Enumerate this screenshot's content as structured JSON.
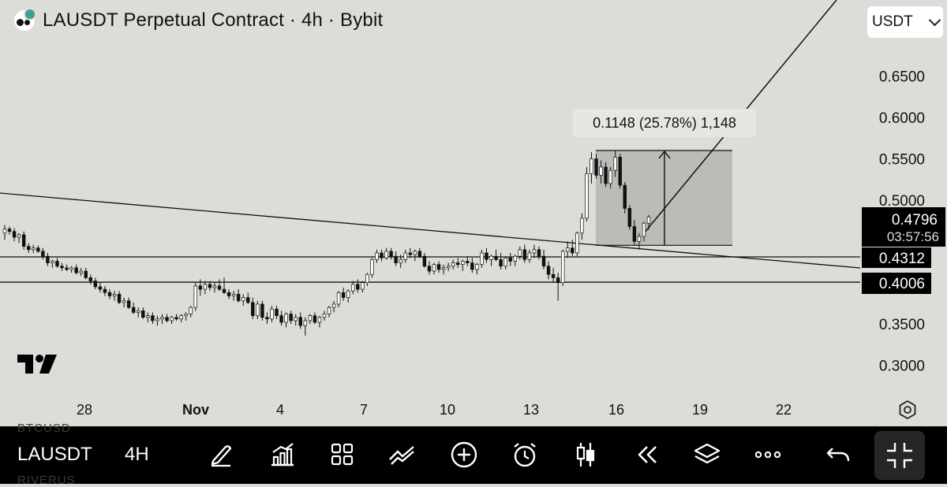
{
  "header": {
    "title": "LAUSDT Perpetual Contract · 4h · Bybit",
    "currency_label": "USDT"
  },
  "icons": {
    "logo": "exchange-logo-icon",
    "currency_dropdown": "chevron-down-icon",
    "tradingview": "tradingview-logo-icon",
    "settings": "hexagon-settings-icon"
  },
  "colors": {
    "background": "#dcdcd8",
    "candle_up_fill": "#ffffff",
    "candle_down_fill": "#111111",
    "measure_box": "#b5b5b2",
    "price_tag_bg": "#000000",
    "toolbar_bg": "#000000"
  },
  "chart_data": {
    "type": "candlestick",
    "symbol": "LAUSDT",
    "interval": "4h",
    "x_tick_labels": [
      "28",
      "Nov",
      "4",
      "7",
      "10",
      "13",
      "16",
      "19",
      "22"
    ],
    "y_tick_labels": [
      "0.6500",
      "0.6000",
      "0.5500",
      "0.5000",
      "0.3500",
      "0.3000"
    ],
    "ylim": [
      0.272,
      0.69
    ],
    "grid": false,
    "price_tags": {
      "last_price": "0.4796",
      "countdown": "03:57:56",
      "level_1": "0.4312",
      "level_2": "0.4006"
    },
    "horizontal_levels": [
      0.4312,
      0.4006
    ],
    "trendline": {
      "from": {
        "x": "25.9",
        "y": 0.51
      },
      "to": {
        "x": "21.9",
        "y": 0.414
      }
    },
    "projection_line": {
      "from": {
        "x": "17.3",
        "y": 0.473
      },
      "to": {
        "x": "20.5",
        "y": 0.69
      }
    },
    "measure": {
      "label": "0.1148 (25.78%) 1,148",
      "from_price": 0.4452,
      "to_price": 0.56,
      "from_x": "15.2",
      "to_x": "20.4"
    },
    "candles_ohlc": [
      [
        0.46,
        0.47,
        0.452,
        0.465
      ],
      [
        0.465,
        0.468,
        0.458,
        0.462
      ],
      [
        0.462,
        0.466,
        0.45,
        0.455
      ],
      [
        0.455,
        0.46,
        0.448,
        0.458
      ],
      [
        0.458,
        0.462,
        0.44,
        0.444
      ],
      [
        0.444,
        0.448,
        0.436,
        0.44
      ],
      [
        0.44,
        0.446,
        0.436,
        0.442
      ],
      [
        0.442,
        0.445,
        0.436,
        0.438
      ],
      [
        0.438,
        0.442,
        0.428,
        0.432
      ],
      [
        0.432,
        0.436,
        0.42,
        0.424
      ],
      [
        0.424,
        0.428,
        0.418,
        0.426
      ],
      [
        0.426,
        0.43,
        0.418,
        0.42
      ],
      [
        0.42,
        0.424,
        0.414,
        0.418
      ],
      [
        0.418,
        0.422,
        0.414,
        0.416
      ],
      [
        0.416,
        0.42,
        0.412,
        0.418
      ],
      [
        0.418,
        0.422,
        0.41,
        0.412
      ],
      [
        0.412,
        0.418,
        0.408,
        0.414
      ],
      [
        0.414,
        0.418,
        0.404,
        0.406
      ],
      [
        0.406,
        0.41,
        0.398,
        0.402
      ],
      [
        0.402,
        0.406,
        0.392,
        0.395
      ],
      [
        0.395,
        0.4,
        0.388,
        0.392
      ],
      [
        0.392,
        0.396,
        0.384,
        0.388
      ],
      [
        0.388,
        0.392,
        0.38,
        0.384
      ],
      [
        0.384,
        0.39,
        0.378,
        0.386
      ],
      [
        0.386,
        0.39,
        0.374,
        0.376
      ],
      [
        0.376,
        0.382,
        0.37,
        0.378
      ],
      [
        0.378,
        0.382,
        0.368,
        0.37
      ],
      [
        0.37,
        0.376,
        0.362,
        0.364
      ],
      [
        0.364,
        0.37,
        0.358,
        0.366
      ],
      [
        0.366,
        0.37,
        0.356,
        0.358
      ],
      [
        0.358,
        0.364,
        0.352,
        0.36
      ],
      [
        0.36,
        0.364,
        0.35,
        0.354
      ],
      [
        0.354,
        0.36,
        0.348,
        0.356
      ],
      [
        0.356,
        0.362,
        0.35,
        0.358
      ],
      [
        0.358,
        0.362,
        0.352,
        0.354
      ],
      [
        0.354,
        0.36,
        0.35,
        0.358
      ],
      [
        0.358,
        0.362,
        0.354,
        0.356
      ],
      [
        0.356,
        0.362,
        0.352,
        0.36
      ],
      [
        0.36,
        0.364,
        0.354,
        0.362
      ],
      [
        0.362,
        0.372,
        0.358,
        0.37
      ],
      [
        0.37,
        0.4,
        0.366,
        0.396
      ],
      [
        0.396,
        0.404,
        0.384,
        0.392
      ],
      [
        0.392,
        0.402,
        0.386,
        0.398
      ],
      [
        0.398,
        0.402,
        0.39,
        0.394
      ],
      [
        0.394,
        0.4,
        0.388,
        0.396
      ],
      [
        0.396,
        0.404,
        0.39,
        0.392
      ],
      [
        0.392,
        0.406,
        0.386,
        0.388
      ],
      [
        0.388,
        0.392,
        0.38,
        0.384
      ],
      [
        0.384,
        0.39,
        0.378,
        0.386
      ],
      [
        0.386,
        0.392,
        0.376,
        0.378
      ],
      [
        0.378,
        0.386,
        0.372,
        0.382
      ],
      [
        0.382,
        0.388,
        0.374,
        0.376
      ],
      [
        0.376,
        0.382,
        0.356,
        0.36
      ],
      [
        0.36,
        0.378,
        0.356,
        0.374
      ],
      [
        0.374,
        0.378,
        0.354,
        0.358
      ],
      [
        0.358,
        0.364,
        0.35,
        0.356
      ],
      [
        0.356,
        0.372,
        0.352,
        0.368
      ],
      [
        0.368,
        0.372,
        0.356,
        0.36
      ],
      [
        0.36,
        0.366,
        0.348,
        0.352
      ],
      [
        0.352,
        0.364,
        0.346,
        0.362
      ],
      [
        0.362,
        0.366,
        0.35,
        0.354
      ],
      [
        0.354,
        0.362,
        0.348,
        0.358
      ],
      [
        0.358,
        0.364,
        0.344,
        0.348
      ],
      [
        0.348,
        0.358,
        0.336,
        0.354
      ],
      [
        0.354,
        0.362,
        0.35,
        0.36
      ],
      [
        0.36,
        0.364,
        0.35,
        0.352
      ],
      [
        0.352,
        0.36,
        0.346,
        0.358
      ],
      [
        0.358,
        0.366,
        0.354,
        0.362
      ],
      [
        0.362,
        0.372,
        0.358,
        0.37
      ],
      [
        0.37,
        0.378,
        0.364,
        0.374
      ],
      [
        0.374,
        0.39,
        0.37,
        0.388
      ],
      [
        0.388,
        0.394,
        0.378,
        0.382
      ],
      [
        0.382,
        0.392,
        0.376,
        0.39
      ],
      [
        0.39,
        0.402,
        0.386,
        0.398
      ],
      [
        0.398,
        0.404,
        0.388,
        0.392
      ],
      [
        0.392,
        0.402,
        0.388,
        0.4
      ],
      [
        0.4,
        0.412,
        0.396,
        0.41
      ],
      [
        0.41,
        0.43,
        0.406,
        0.428
      ],
      [
        0.428,
        0.44,
        0.424,
        0.436
      ],
      [
        0.436,
        0.44,
        0.426,
        0.43
      ],
      [
        0.43,
        0.442,
        0.428,
        0.438
      ],
      [
        0.438,
        0.442,
        0.428,
        0.432
      ],
      [
        0.432,
        0.438,
        0.42,
        0.424
      ],
      [
        0.424,
        0.434,
        0.418,
        0.428
      ],
      [
        0.428,
        0.44,
        0.424,
        0.436
      ],
      [
        0.436,
        0.442,
        0.43,
        0.434
      ],
      [
        0.434,
        0.44,
        0.426,
        0.438
      ],
      [
        0.438,
        0.442,
        0.43,
        0.432
      ],
      [
        0.432,
        0.436,
        0.418,
        0.42
      ],
      [
        0.42,
        0.426,
        0.41,
        0.414
      ],
      [
        0.414,
        0.424,
        0.41,
        0.422
      ],
      [
        0.422,
        0.426,
        0.412,
        0.416
      ],
      [
        0.416,
        0.422,
        0.41,
        0.418
      ],
      [
        0.418,
        0.424,
        0.414,
        0.42
      ],
      [
        0.42,
        0.428,
        0.416,
        0.424
      ],
      [
        0.424,
        0.43,
        0.418,
        0.422
      ],
      [
        0.422,
        0.428,
        0.414,
        0.426
      ],
      [
        0.426,
        0.432,
        0.42,
        0.424
      ],
      [
        0.424,
        0.43,
        0.412,
        0.416
      ],
      [
        0.416,
        0.424,
        0.41,
        0.422
      ],
      [
        0.422,
        0.44,
        0.418,
        0.436
      ],
      [
        0.436,
        0.442,
        0.424,
        0.428
      ],
      [
        0.428,
        0.434,
        0.42,
        0.432
      ],
      [
        0.432,
        0.44,
        0.426,
        0.428
      ],
      [
        0.428,
        0.436,
        0.416,
        0.42
      ],
      [
        0.42,
        0.432,
        0.416,
        0.43
      ],
      [
        0.43,
        0.436,
        0.42,
        0.426
      ],
      [
        0.426,
        0.434,
        0.42,
        0.432
      ],
      [
        0.432,
        0.444,
        0.428,
        0.44
      ],
      [
        0.44,
        0.446,
        0.424,
        0.428
      ],
      [
        0.428,
        0.44,
        0.424,
        0.436
      ],
      [
        0.436,
        0.446,
        0.43,
        0.44
      ],
      [
        0.44,
        0.444,
        0.428,
        0.432
      ],
      [
        0.432,
        0.44,
        0.416,
        0.42
      ],
      [
        0.42,
        0.426,
        0.404,
        0.41
      ],
      [
        0.41,
        0.418,
        0.4,
        0.406
      ],
      [
        0.406,
        0.412,
        0.378,
        0.4
      ],
      [
        0.4,
        0.44,
        0.396,
        0.438
      ],
      [
        0.438,
        0.45,
        0.43,
        0.442
      ],
      [
        0.442,
        0.452,
        0.432,
        0.436
      ],
      [
        0.436,
        0.462,
        0.432,
        0.46
      ],
      [
        0.46,
        0.484,
        0.452,
        0.478
      ],
      [
        0.478,
        0.54,
        0.474,
        0.532
      ],
      [
        0.532,
        0.558,
        0.52,
        0.55
      ],
      [
        0.55,
        0.556,
        0.526,
        0.53
      ],
      [
        0.53,
        0.548,
        0.52,
        0.54
      ],
      [
        0.54,
        0.546,
        0.516,
        0.52
      ],
      [
        0.52,
        0.54,
        0.514,
        0.536
      ],
      [
        0.536,
        0.56,
        0.528,
        0.552
      ],
      [
        0.552,
        0.556,
        0.514,
        0.518
      ],
      [
        0.518,
        0.522,
        0.484,
        0.49
      ],
      [
        0.49,
        0.494,
        0.464,
        0.468
      ],
      [
        0.468,
        0.476,
        0.446,
        0.45
      ],
      [
        0.45,
        0.46,
        0.44,
        0.456
      ],
      [
        0.456,
        0.474,
        0.45,
        0.472
      ],
      [
        0.472,
        0.482,
        0.464,
        0.4796
      ]
    ]
  },
  "toolbar": {
    "symbol": "LAUSDT",
    "ghost_symbol_top": "BTCUSD",
    "ghost_symbol_bottom": "RIVERUS",
    "timeframe": "4H",
    "icons": [
      "pen-draw-icon",
      "bar-chart-icon",
      "grid-icon",
      "trend-lines-icon",
      "add-circle-icon",
      "alarm-clock-icon",
      "candle-icon",
      "replay-icon",
      "layers-icon",
      "more-icon",
      "undo-icon",
      "collapse-icon"
    ]
  }
}
